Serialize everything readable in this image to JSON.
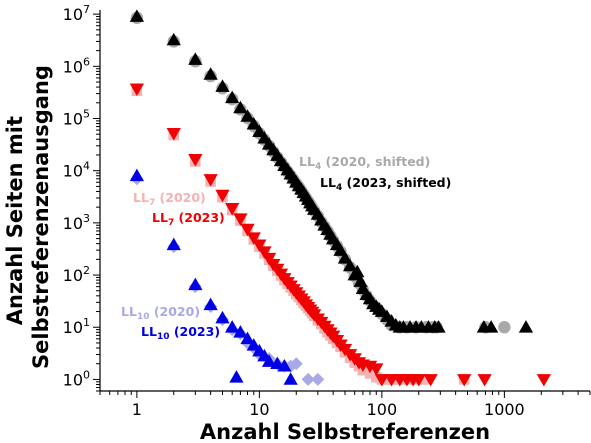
{
  "chart_data": {
    "type": "scatter",
    "xlabel": "Anzahl Selbstreferenzen",
    "ylabel_lines": [
      "Anzahl Seiten mit",
      "Selbstreferenzenausgang"
    ],
    "x_scale": "log",
    "y_scale": "log",
    "xlim": [
      0.5,
      5000
    ],
    "ylim": [
      0.6,
      12000000
    ],
    "x_ticks": [
      {
        "value": 1,
        "label": "1"
      },
      {
        "value": 10,
        "label": "10"
      },
      {
        "value": 100,
        "label": "100"
      },
      {
        "value": 1000,
        "label": "1000"
      }
    ],
    "y_ticks": [
      {
        "value": 1,
        "base": "10",
        "exp": "0"
      },
      {
        "value": 10,
        "base": "10",
        "exp": "1"
      },
      {
        "value": 100,
        "base": "10",
        "exp": "2"
      },
      {
        "value": 1000,
        "base": "10",
        "exp": "3"
      },
      {
        "value": 10000,
        "base": "10",
        "exp": "4"
      },
      {
        "value": 100000,
        "base": "10",
        "exp": "5"
      },
      {
        "value": 1000000,
        "base": "10",
        "exp": "6"
      },
      {
        "value": 10000000,
        "base": "10",
        "exp": "7"
      }
    ],
    "grid": false,
    "series": [
      {
        "key": "ll4_2020",
        "name_main": "LL",
        "name_sub": "4",
        "name_rest": " (2020, shifted)",
        "marker": "circle",
        "color": "#a9a9a9",
        "points": [
          [
            1,
            8500000
          ],
          [
            2,
            3000000
          ],
          [
            3,
            1250000
          ],
          [
            4,
            650000
          ],
          [
            5,
            380000
          ],
          [
            6,
            235000
          ],
          [
            7,
            150000
          ],
          [
            8,
            102000
          ],
          [
            9,
            72000
          ],
          [
            10,
            52000
          ],
          [
            11,
            39000
          ],
          [
            12,
            30000
          ],
          [
            13,
            23000
          ],
          [
            14,
            18000
          ],
          [
            15,
            14500
          ],
          [
            16,
            11800
          ],
          [
            17,
            9600
          ],
          [
            18,
            8000
          ],
          [
            19,
            6700
          ],
          [
            20,
            5600
          ],
          [
            21,
            4800
          ],
          [
            22,
            4100
          ],
          [
            23,
            3500
          ],
          [
            24,
            3000
          ],
          [
            25,
            2600
          ],
          [
            26,
            2250
          ],
          [
            27,
            1950
          ],
          [
            28,
            1700
          ],
          [
            30,
            1350
          ],
          [
            32,
            1050
          ],
          [
            34,
            850
          ],
          [
            36,
            700
          ],
          [
            38,
            560
          ],
          [
            40,
            460
          ],
          [
            43,
            360
          ],
          [
            46,
            280
          ],
          [
            50,
            200
          ],
          [
            55,
            140
          ],
          [
            60,
            95
          ],
          [
            65,
            70
          ],
          [
            70,
            52
          ],
          [
            75,
            40
          ],
          [
            80,
            32
          ],
          [
            90,
            24
          ],
          [
            100,
            18
          ],
          [
            110,
            14
          ],
          [
            120,
            11
          ],
          [
            140,
            10
          ],
          [
            160,
            10
          ],
          [
            190,
            10
          ],
          [
            230,
            10
          ],
          [
            260,
            10
          ],
          [
            280,
            10
          ],
          [
            700,
            10
          ],
          [
            1000,
            10
          ]
        ]
      },
      {
        "key": "ll4_2023",
        "name_main": "LL",
        "name_sub": "4",
        "name_rest": " (2023, shifted)",
        "marker": "triangle-up",
        "color": "#000000",
        "points": [
          [
            1,
            9000000
          ],
          [
            2,
            3200000
          ],
          [
            3,
            1350000
          ],
          [
            4,
            700000
          ],
          [
            5,
            410000
          ],
          [
            6,
            250000
          ],
          [
            7,
            160000
          ],
          [
            8,
            110000
          ],
          [
            9,
            78000
          ],
          [
            10,
            56000
          ],
          [
            11,
            42000
          ],
          [
            12,
            32000
          ],
          [
            13,
            25000
          ],
          [
            14,
            19500
          ],
          [
            15,
            15500
          ],
          [
            16,
            12500
          ],
          [
            17,
            10300
          ],
          [
            18,
            8600
          ],
          [
            19,
            7200
          ],
          [
            20,
            6000
          ],
          [
            21,
            5100
          ],
          [
            22,
            4400
          ],
          [
            23,
            3800
          ],
          [
            24,
            3250
          ],
          [
            25,
            2800
          ],
          [
            26,
            2400
          ],
          [
            27,
            2100
          ],
          [
            28,
            1800
          ],
          [
            30,
            1450
          ],
          [
            32,
            1130
          ],
          [
            34,
            900
          ],
          [
            36,
            740
          ],
          [
            38,
            600
          ],
          [
            40,
            490
          ],
          [
            43,
            380
          ],
          [
            46,
            295
          ],
          [
            50,
            210
          ],
          [
            55,
            150
          ],
          [
            60,
            100
          ],
          [
            63,
            115
          ],
          [
            67,
            75
          ],
          [
            70,
            55
          ],
          [
            75,
            42
          ],
          [
            80,
            35
          ],
          [
            85,
            28
          ],
          [
            90,
            25
          ],
          [
            95,
            22
          ],
          [
            100,
            20
          ],
          [
            110,
            16
          ],
          [
            120,
            13
          ],
          [
            130,
            11
          ],
          [
            140,
            10
          ],
          [
            150,
            10
          ],
          [
            170,
            10
          ],
          [
            190,
            10
          ],
          [
            210,
            10
          ],
          [
            240,
            10
          ],
          [
            270,
            10
          ],
          [
            290,
            10
          ],
          [
            680,
            10
          ],
          [
            780,
            10
          ],
          [
            1500,
            10
          ]
        ]
      },
      {
        "key": "ll7_2020",
        "name_main": "LL",
        "name_sub": "7",
        "name_rest": " (2020)",
        "marker": "square",
        "color": "#f5b2b2",
        "points": [
          [
            1,
            340000
          ],
          [
            2,
            48000
          ],
          [
            3,
            15000
          ],
          [
            4,
            6200
          ],
          [
            5,
            3100
          ],
          [
            6,
            1750
          ],
          [
            7,
            1100
          ],
          [
            8,
            700
          ],
          [
            9,
            480
          ],
          [
            10,
            350
          ],
          [
            11,
            260
          ],
          [
            12,
            195
          ],
          [
            13,
            150
          ],
          [
            14,
            120
          ],
          [
            15,
            98
          ],
          [
            16,
            80
          ],
          [
            17,
            68
          ],
          [
            18,
            58
          ],
          [
            19,
            50
          ],
          [
            20,
            43
          ],
          [
            21,
            38
          ],
          [
            22,
            33
          ],
          [
            23,
            29
          ],
          [
            24,
            26
          ],
          [
            25,
            23
          ],
          [
            26,
            20.5
          ],
          [
            27,
            18.5
          ],
          [
            28,
            16.5
          ],
          [
            30,
            13.5
          ],
          [
            32,
            11.5
          ],
          [
            34,
            9.5
          ],
          [
            36,
            8
          ],
          [
            38,
            7
          ],
          [
            40,
            6
          ],
          [
            43,
            5
          ],
          [
            46,
            4.2
          ],
          [
            50,
            3.3
          ],
          [
            55,
            2.6
          ],
          [
            60,
            2.1
          ],
          [
            65,
            1.8
          ],
          [
            70,
            1.5
          ],
          [
            80,
            1.3
          ],
          [
            90,
            1.1
          ],
          [
            100,
            1
          ],
          [
            110,
            1
          ],
          [
            120,
            1
          ],
          [
            140,
            1
          ],
          [
            170,
            1
          ],
          [
            200,
            1
          ],
          [
            220,
            1
          ],
          [
            470,
            1
          ]
        ]
      },
      {
        "key": "ll7_2023",
        "name_main": "LL",
        "name_sub": "7",
        "name_rest": " (2023)",
        "marker": "triangle-down",
        "color": "#f00000",
        "points": [
          [
            1,
            370000
          ],
          [
            2,
            52000
          ],
          [
            3,
            16500
          ],
          [
            4,
            6800
          ],
          [
            5,
            3400
          ],
          [
            6,
            1900
          ],
          [
            7,
            1200
          ],
          [
            8,
            760
          ],
          [
            9,
            520
          ],
          [
            10,
            380
          ],
          [
            11,
            280
          ],
          [
            12,
            210
          ],
          [
            13,
            160
          ],
          [
            14,
            130
          ],
          [
            15,
            105
          ],
          [
            16,
            86
          ],
          [
            17,
            72
          ],
          [
            18,
            62
          ],
          [
            19,
            53
          ],
          [
            20,
            46
          ],
          [
            21,
            40
          ],
          [
            22,
            35
          ],
          [
            23,
            31
          ],
          [
            24,
            27
          ],
          [
            25,
            24
          ],
          [
            26,
            21.5
          ],
          [
            27,
            19.5
          ],
          [
            28,
            17.5
          ],
          [
            30,
            14.5
          ],
          [
            32,
            12.5
          ],
          [
            34,
            10.5
          ],
          [
            36,
            9
          ],
          [
            38,
            7.8
          ],
          [
            40,
            6.8
          ],
          [
            43,
            5.6
          ],
          [
            46,
            4.6
          ],
          [
            50,
            3.8
          ],
          [
            55,
            3
          ],
          [
            60,
            2.5
          ],
          [
            65,
            2.1
          ],
          [
            70,
            1.9
          ],
          [
            80,
            1.8
          ],
          [
            90,
            1.6
          ],
          [
            100,
            1
          ],
          [
            120,
            1
          ],
          [
            140,
            1
          ],
          [
            160,
            1
          ],
          [
            180,
            1
          ],
          [
            200,
            1
          ],
          [
            250,
            1
          ],
          [
            470,
            1
          ],
          [
            690,
            1
          ],
          [
            2100,
            1
          ]
        ]
      },
      {
        "key": "ll10_2020",
        "name_main": "LL",
        "name_sub": "10",
        "name_rest": " (2020)",
        "marker": "diamond",
        "color": "#a9a9e8",
        "points": [
          [
            1,
            7000
          ],
          [
            2,
            350
          ],
          [
            3,
            60
          ],
          [
            4,
            25
          ],
          [
            5,
            14
          ],
          [
            6,
            9
          ],
          [
            7,
            7.5
          ],
          [
            8,
            5
          ],
          [
            9,
            4
          ],
          [
            10,
            3
          ],
          [
            12,
            2.5
          ],
          [
            14,
            2
          ],
          [
            16,
            1.8
          ],
          [
            18,
            1.8
          ],
          [
            20,
            2
          ],
          [
            25,
            1
          ],
          [
            30,
            1
          ]
        ]
      },
      {
        "key": "ll10_2023",
        "name_main": "LL",
        "name_sub": "10",
        "name_rest": " (2023)",
        "marker": "triangle-up",
        "color": "#0000e6",
        "points": [
          [
            1,
            8000
          ],
          [
            2,
            380
          ],
          [
            3,
            65
          ],
          [
            4,
            27
          ],
          [
            5,
            15
          ],
          [
            6,
            10
          ],
          [
            7,
            8
          ],
          [
            8,
            6
          ],
          [
            9,
            4.5
          ],
          [
            10,
            3.5
          ],
          [
            11,
            2.8
          ],
          [
            12,
            2.2
          ],
          [
            14,
            2
          ],
          [
            16,
            1.8
          ],
          [
            18,
            1
          ],
          [
            6.5,
            1.1
          ]
        ]
      }
    ],
    "legend_placement": "inline-annotations"
  }
}
